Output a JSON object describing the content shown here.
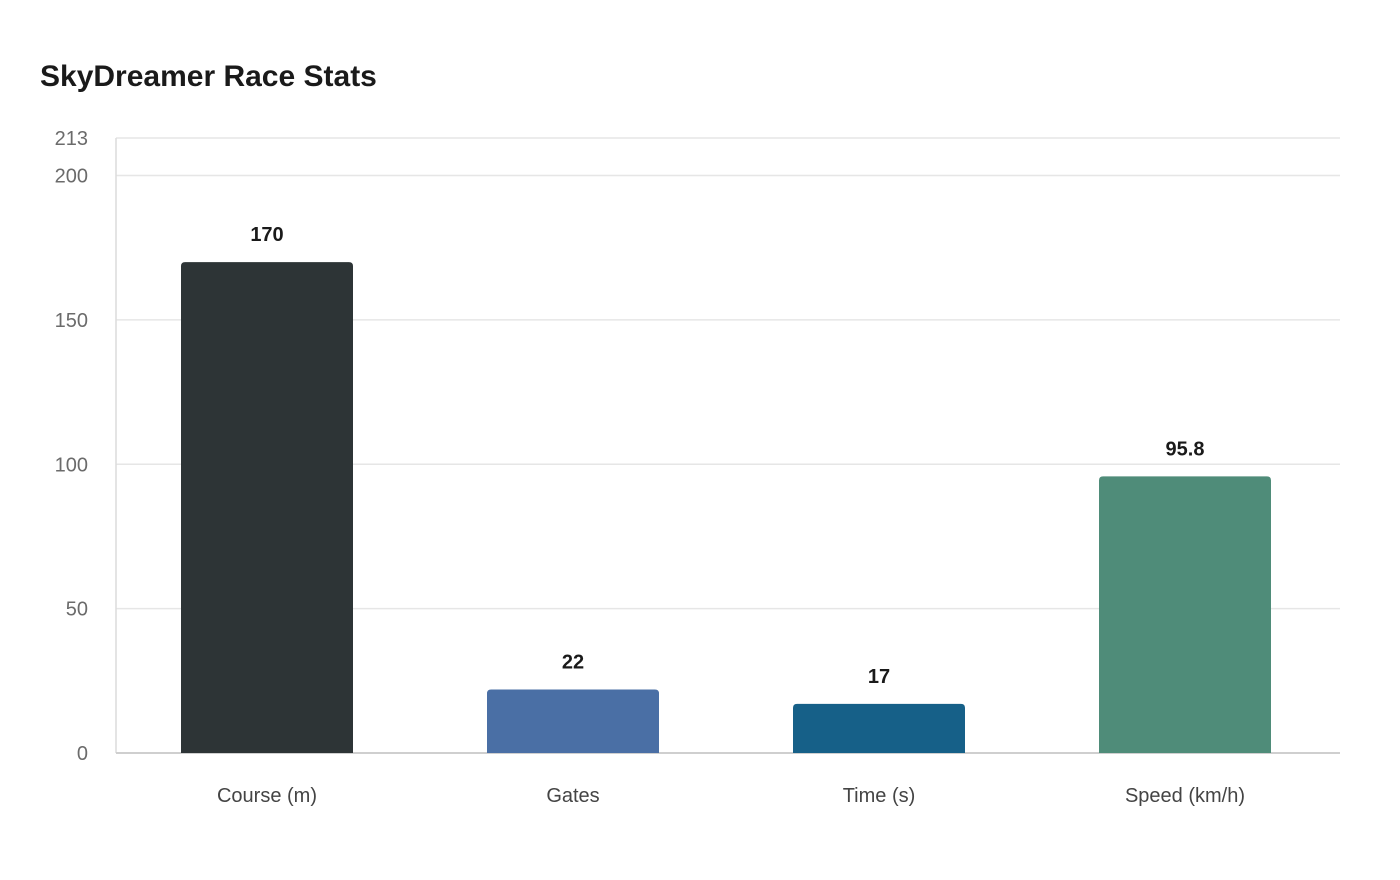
{
  "chart_data": {
    "type": "bar",
    "title": "SkyDreamer Race Stats",
    "categories": [
      "Course (m)",
      "Gates",
      "Time (s)",
      "Speed (km/h)"
    ],
    "values": [
      170,
      22,
      17,
      95.8
    ],
    "value_labels": [
      "170",
      "22",
      "17",
      "95.8"
    ],
    "colors": [
      "#2d3436",
      "#4a6fa5",
      "#166088",
      "#4f8c79"
    ],
    "ylim": [
      0,
      213
    ],
    "yticks": [
      0,
      50,
      100,
      150,
      200,
      213
    ],
    "xlabel": "",
    "ylabel": "",
    "grid": true,
    "legend": "none"
  }
}
